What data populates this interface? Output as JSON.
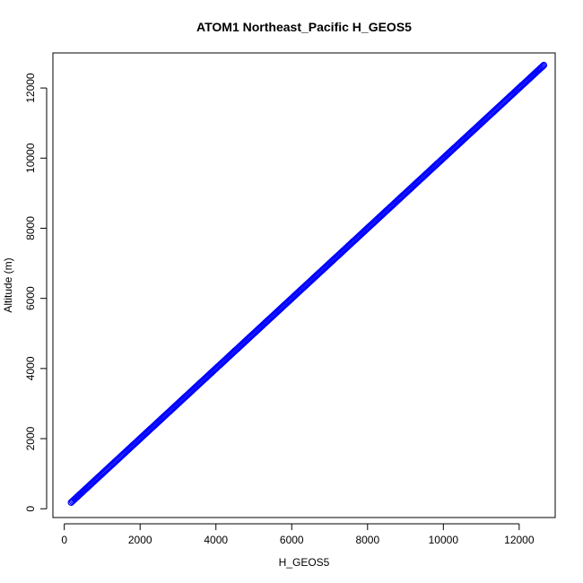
{
  "chart_data": {
    "type": "scatter",
    "title": "ATOM1 Northeast_Pacific H_GEOS5",
    "xlabel": "H_GEOS5",
    "ylabel": "Altitude (m)",
    "xlim": [
      -300,
      12950
    ],
    "ylim": [
      -250,
      13000
    ],
    "xticks": [
      0,
      2000,
      4000,
      6000,
      8000,
      10000,
      12000
    ],
    "yticks": [
      0,
      2000,
      4000,
      6000,
      8000,
      10000,
      12000
    ],
    "xtick_labels": [
      "0",
      "2000",
      "4000",
      "6000",
      "8000",
      "10000",
      "12000"
    ],
    "ytick_labels": [
      "0",
      "2000",
      "4000",
      "6000",
      "8000",
      "10000",
      "12000"
    ],
    "grid": false,
    "marker": "open-circle",
    "color": "#0000ff",
    "series": [
      {
        "x": [
          180,
          300,
          450,
          600,
          800,
          1000,
          1300,
          1600,
          2000,
          2400,
          2800,
          3200,
          3600,
          4000,
          4400,
          4800,
          5200,
          5600,
          6000,
          6400,
          6800,
          7200,
          7600,
          8000,
          8400,
          8800,
          9200,
          9600,
          10000,
          10400,
          10800,
          11200,
          11500,
          11800,
          12000,
          12200,
          12400,
          12550,
          12650
        ],
        "y": [
          180,
          300,
          450,
          600,
          800,
          1000,
          1300,
          1600,
          2000,
          2400,
          2800,
          3200,
          3600,
          4000,
          4400,
          4800,
          5200,
          5600,
          6000,
          6400,
          6800,
          7200,
          7600,
          8000,
          8400,
          8800,
          9200,
          9600,
          10000,
          10400,
          10800,
          11200,
          11500,
          11800,
          12000,
          12200,
          12400,
          12550,
          12650
        ]
      }
    ]
  }
}
